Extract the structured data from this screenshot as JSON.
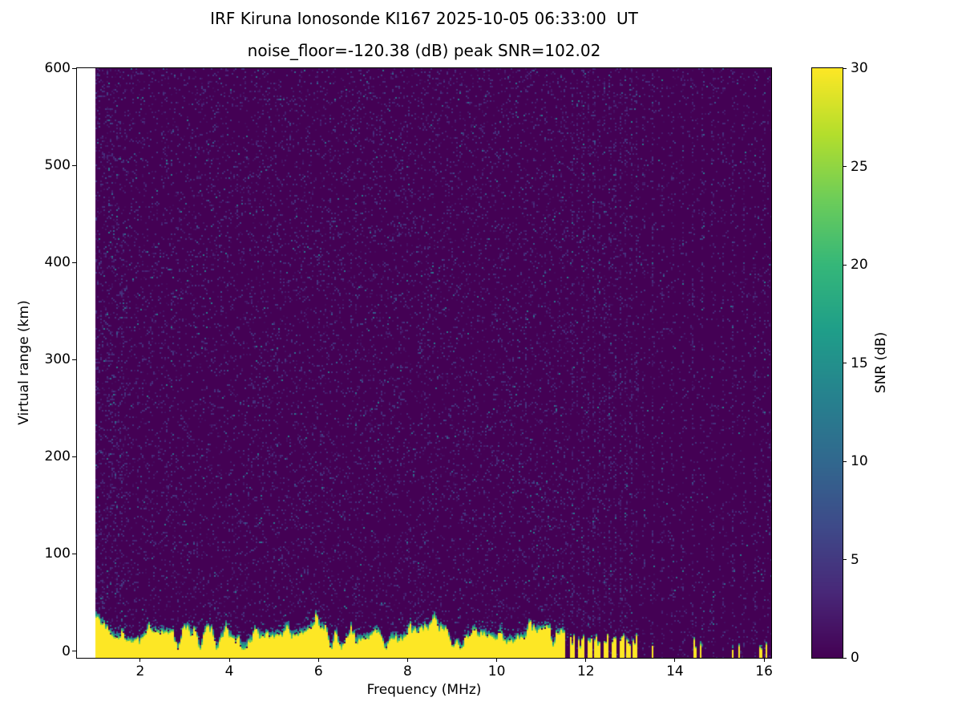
{
  "chart_data": {
    "type": "heatmap",
    "title": "IRF Kiruna Ionosonde KI167 2025-10-05 06:33:00  UT",
    "subtitle": "noise_floor=-120.38 (dB) peak SNR=102.02",
    "xlabel": "Frequency (MHz)",
    "ylabel": "Virtual range (km)",
    "colorbar_label": "SNR (dB)",
    "xlim": [
      0.58,
      16.16
    ],
    "ylim": [
      -7,
      600
    ],
    "clim": [
      0,
      30
    ],
    "x_ticks": [
      2,
      4,
      6,
      8,
      10,
      12,
      14,
      16
    ],
    "y_ticks": [
      0,
      100,
      200,
      300,
      400,
      500,
      600
    ],
    "colorbar_ticks": [
      0,
      5,
      10,
      15,
      20,
      25,
      30
    ],
    "colormap": "viridis",
    "background_snr_db": 0,
    "data_freq_start": 1.0,
    "colormap_stops": [
      [
        68,
        1,
        84
      ],
      [
        72,
        40,
        120
      ],
      [
        62,
        74,
        137
      ],
      [
        49,
        104,
        142
      ],
      [
        38,
        130,
        142
      ],
      [
        31,
        158,
        137
      ],
      [
        53,
        183,
        121
      ],
      [
        109,
        205,
        89
      ],
      [
        180,
        222,
        44
      ],
      [
        253,
        231,
        37
      ]
    ],
    "features": {
      "noise_speckle_density": 0.11,
      "ground_echo": {
        "freq_range": [
          1.0,
          11.55
        ],
        "mean_height_km": 22,
        "peak_snr_db": 30
      },
      "echo_notch_freqs": [
        2.85,
        3.35,
        3.72,
        4.33,
        6.28,
        6.52,
        7.52,
        9.02,
        9.2,
        11.25
      ],
      "echo_plume_freqs": [
        1.6,
        2.2,
        3.05,
        3.95,
        4.6,
        5.3,
        5.95,
        6.75,
        7.3,
        8.05,
        8.6,
        9.5,
        10.1,
        10.75,
        11.2
      ],
      "intermittent_echo_segments": [
        [
          11.66,
          11.76
        ],
        [
          11.84,
          11.98
        ],
        [
          12.04,
          12.14
        ],
        [
          12.2,
          12.32
        ],
        [
          12.4,
          12.52
        ],
        [
          12.58,
          12.68
        ],
        [
          12.76,
          12.86
        ],
        [
          12.92,
          13.0
        ],
        [
          13.06,
          13.14
        ]
      ],
      "sparse_echo_freqs": [
        13.5,
        14.45,
        14.58,
        15.3,
        15.44,
        15.92,
        16.05
      ],
      "rfi_stripes": [
        [
          10.65,
          0.3
        ],
        [
          11.1,
          0.25
        ],
        [
          11.45,
          0.3
        ],
        [
          11.7,
          0.9
        ],
        [
          11.82,
          0.7
        ],
        [
          11.94,
          0.9
        ],
        [
          12.06,
          0.8
        ],
        [
          12.18,
          0.9
        ],
        [
          12.3,
          0.7
        ],
        [
          12.42,
          0.8
        ],
        [
          12.54,
          0.9
        ],
        [
          12.66,
          0.7
        ],
        [
          12.78,
          0.8
        ],
        [
          12.9,
          0.9
        ],
        [
          13.02,
          0.7
        ],
        [
          13.14,
          0.6
        ],
        [
          13.3,
          0.5
        ],
        [
          13.5,
          0.7
        ],
        [
          13.72,
          0.5
        ],
        [
          13.95,
          0.6
        ],
        [
          14.18,
          0.5
        ],
        [
          14.4,
          0.6
        ],
        [
          14.62,
          0.5
        ],
        [
          14.85,
          0.6
        ],
        [
          15.08,
          0.5
        ],
        [
          15.3,
          0.6
        ],
        [
          15.55,
          0.5
        ],
        [
          15.8,
          0.6
        ],
        [
          16.0,
          0.5
        ],
        [
          16.1,
          0.4
        ]
      ]
    }
  }
}
